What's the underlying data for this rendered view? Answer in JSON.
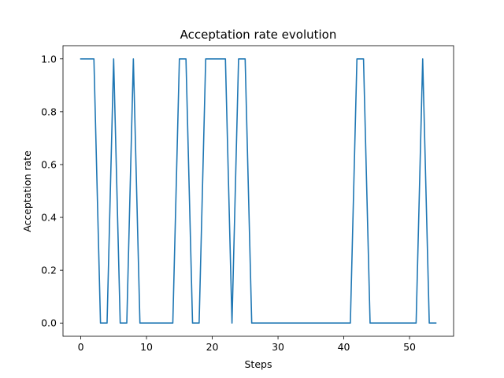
{
  "chart_data": {
    "type": "line",
    "title": "Acceptation rate evolution",
    "xlabel": "Steps",
    "ylabel": "Acceptation rate",
    "xlim": [
      -2.7,
      56.7
    ],
    "ylim": [
      -0.05,
      1.05
    ],
    "xticks": [
      0,
      10,
      20,
      30,
      40,
      50
    ],
    "yticks": [
      0.0,
      0.2,
      0.4,
      0.6,
      0.8,
      1.0
    ],
    "ytick_labels": [
      "0.0",
      "0.2",
      "0.4",
      "0.6",
      "0.8",
      "1.0"
    ],
    "grid": false,
    "series": [
      {
        "color": "#1f77b4",
        "x": [
          0,
          1,
          2,
          3,
          4,
          5,
          6,
          7,
          8,
          9,
          10,
          11,
          12,
          13,
          14,
          15,
          16,
          17,
          18,
          19,
          20,
          21,
          22,
          23,
          24,
          25,
          26,
          27,
          28,
          29,
          30,
          31,
          32,
          33,
          34,
          35,
          36,
          37,
          38,
          39,
          40,
          41,
          42,
          43,
          44,
          45,
          46,
          47,
          48,
          49,
          50,
          51,
          52,
          53,
          54
        ],
        "values": [
          1,
          1,
          1,
          0,
          0,
          1,
          0,
          0,
          1,
          0,
          0,
          0,
          0,
          0,
          0,
          1,
          1,
          0,
          0,
          1,
          1,
          1,
          1,
          0,
          1,
          1,
          0,
          0,
          0,
          0,
          0,
          0,
          0,
          0,
          0,
          0,
          0,
          0,
          0,
          0,
          0,
          0,
          1,
          1,
          0,
          0,
          0,
          0,
          0,
          0,
          0,
          0,
          1,
          0,
          0
        ]
      }
    ]
  }
}
